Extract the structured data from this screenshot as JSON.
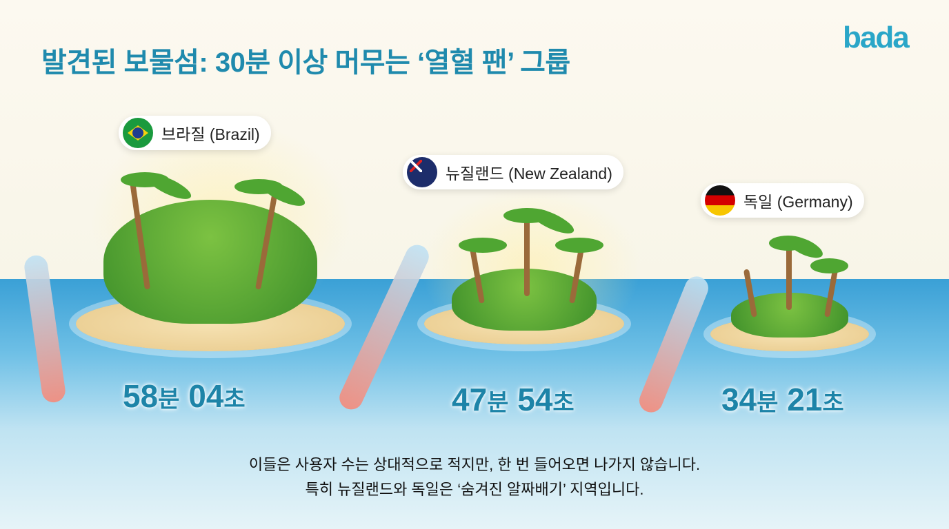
{
  "title": "발견된 보물섬: 30분 이상 머무는 ‘열혈 팬’ 그룹",
  "logo": "bada",
  "countries": [
    {
      "name": "브라질 (Brazil)",
      "flag": "brazil-flag",
      "time_min": "58",
      "unit_min": "분",
      "time_sec": "04",
      "unit_sec": "초"
    },
    {
      "name": "뉴질랜드 (New Zealand)",
      "flag": "new-zealand-flag",
      "time_min": "47",
      "unit_min": "분",
      "time_sec": "54",
      "unit_sec": "초"
    },
    {
      "name": "독일 (Germany)",
      "flag": "germany-flag",
      "time_min": "34",
      "unit_min": "분",
      "time_sec": "21",
      "unit_sec": "초"
    }
  ],
  "caption": {
    "line1": "이들은 사용자 수는 상대적으로 적지만, 한 번 들어오면 나가지 않습니다.",
    "line2": "특히 뉴질랜드와 독일은 ‘숨겨진 알짜배기’ 지역입니다."
  },
  "colors": {
    "title": "#1f8aad",
    "sea": "#3aa0d6",
    "arc_top": "#bfe2f4",
    "arc_bottom": "#f58a7a"
  }
}
